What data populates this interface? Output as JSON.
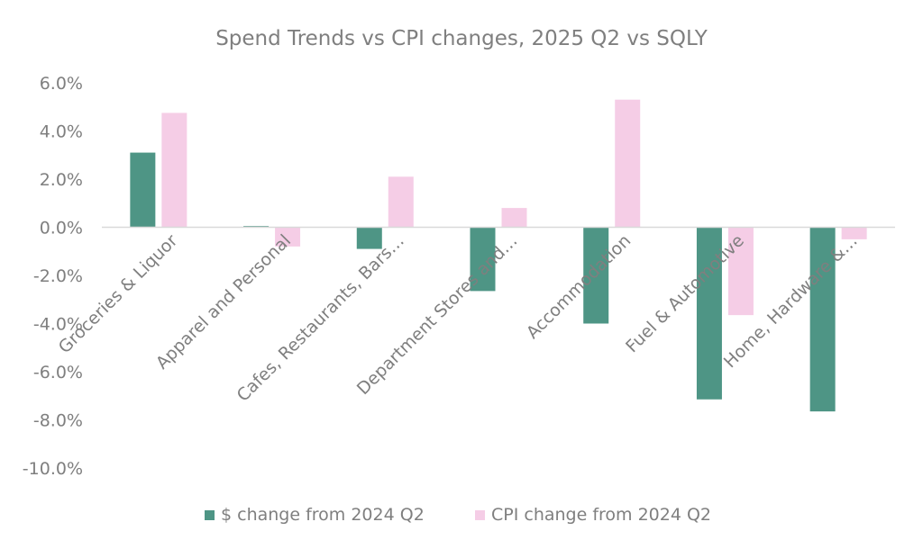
{
  "chart_data": {
    "type": "bar",
    "title": "Spend Trends vs CPI changes, 2025 Q2 vs SQLY",
    "categories": [
      "Groceries & Liquor",
      "Apparel and Personal",
      "Cafes, Restaurants, Bars…",
      "Department Stores and…",
      "Accommodation",
      "Fuel & Automotive",
      "Home, Hardware &…"
    ],
    "series": [
      {
        "name": "$ change from 2024 Q2",
        "color": "#4e9585",
        "values": [
          3.1,
          0.05,
          -0.9,
          -2.65,
          -4.0,
          -7.15,
          -7.65
        ]
      },
      {
        "name": "CPI change from 2024 Q2",
        "color": "#f5cde6",
        "values": [
          4.75,
          -0.8,
          2.1,
          0.8,
          5.3,
          -3.65,
          -0.5
        ]
      }
    ],
    "y_ticks": [
      "6.0%",
      "4.0%",
      "2.0%",
      "0.0%",
      "-2.0%",
      "-4.0%",
      "-6.0%",
      "-8.0%",
      "-10.0%"
    ],
    "ylim": [
      -10,
      6
    ],
    "xlabel": "",
    "ylabel": "",
    "grid": false,
    "legend_position": "bottom",
    "axis_color": "#d9d9d9",
    "text_color": "#7f7f7f"
  }
}
